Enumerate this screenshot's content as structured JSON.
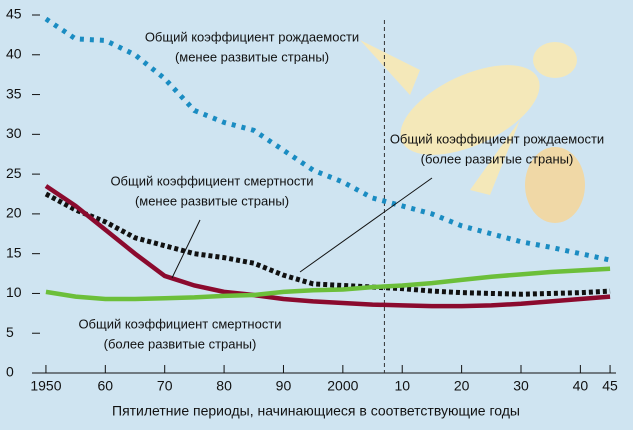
{
  "chart_data": {
    "type": "line",
    "x_label": "Пятилетние периоды, начинающиеся в соответствующие годы",
    "x": [
      1950,
      1955,
      1960,
      1965,
      1970,
      1975,
      1980,
      1985,
      1990,
      1995,
      2000,
      2005,
      2010,
      2015,
      2020,
      2025,
      2030,
      2035,
      2040,
      2045
    ],
    "xlim": [
      1949,
      2046
    ],
    "xticks": [
      1950,
      {
        "value": 1960,
        "label": "60"
      },
      {
        "value": 1970,
        "label": "70"
      },
      {
        "value": 1980,
        "label": "80"
      },
      {
        "value": 1990,
        "label": "90"
      },
      2000,
      {
        "value": 2010,
        "label": "10"
      },
      {
        "value": 2020,
        "label": "20"
      },
      {
        "value": 2030,
        "label": "30"
      },
      {
        "value": 2040,
        "label": "40"
      },
      {
        "value": 2045,
        "label": "45"
      }
    ],
    "ylim": [
      0,
      45
    ],
    "yticks": [
      0,
      5,
      10,
      15,
      20,
      25,
      30,
      35,
      40,
      45
    ],
    "marker_x": 2007,
    "series": [
      {
        "label": [
          "Общий коэффициент рождаемости",
          "(менее развитые страны)"
        ],
        "color": "#1a8cc2",
        "style": "dotted",
        "values": [
          44.5,
          42,
          41.8,
          40,
          37,
          33,
          31.5,
          30.5,
          28,
          25.5,
          24,
          22,
          21,
          20,
          18.5,
          17.5,
          16.5,
          15.8,
          15,
          14.2
        ]
      },
      {
        "label": [
          "Общий коэффициент рождаемости",
          "(более развитые страны)"
        ],
        "color": "#111111",
        "style": "dotted",
        "values": [
          22.5,
          20.5,
          19,
          17,
          16,
          15,
          14.5,
          13.8,
          12.3,
          11.2,
          11,
          10.8,
          10.6,
          10.3,
          10.1,
          10,
          9.9,
          10,
          10.1,
          10.3
        ]
      },
      {
        "label": [
          "Общий коэффициент смертности",
          "(менее развитые страны)"
        ],
        "color": "#8b0a2e",
        "style": "solid",
        "values": [
          23.5,
          21,
          18,
          15,
          12.2,
          11,
          10.2,
          9.8,
          9.3,
          9,
          8.8,
          8.6,
          8.5,
          8.4,
          8.4,
          8.5,
          8.7,
          9,
          9.3,
          9.6
        ]
      },
      {
        "label": [
          "Общий коэффициент смертности",
          "(более развитые страны)"
        ],
        "color": "#6cbf3a",
        "style": "solid",
        "values": [
          10.2,
          9.6,
          9.3,
          9.3,
          9.4,
          9.5,
          9.7,
          9.8,
          10.2,
          10.4,
          10.5,
          10.8,
          11,
          11.3,
          11.7,
          12.1,
          12.4,
          12.7,
          12.9,
          13.1
        ]
      }
    ]
  }
}
